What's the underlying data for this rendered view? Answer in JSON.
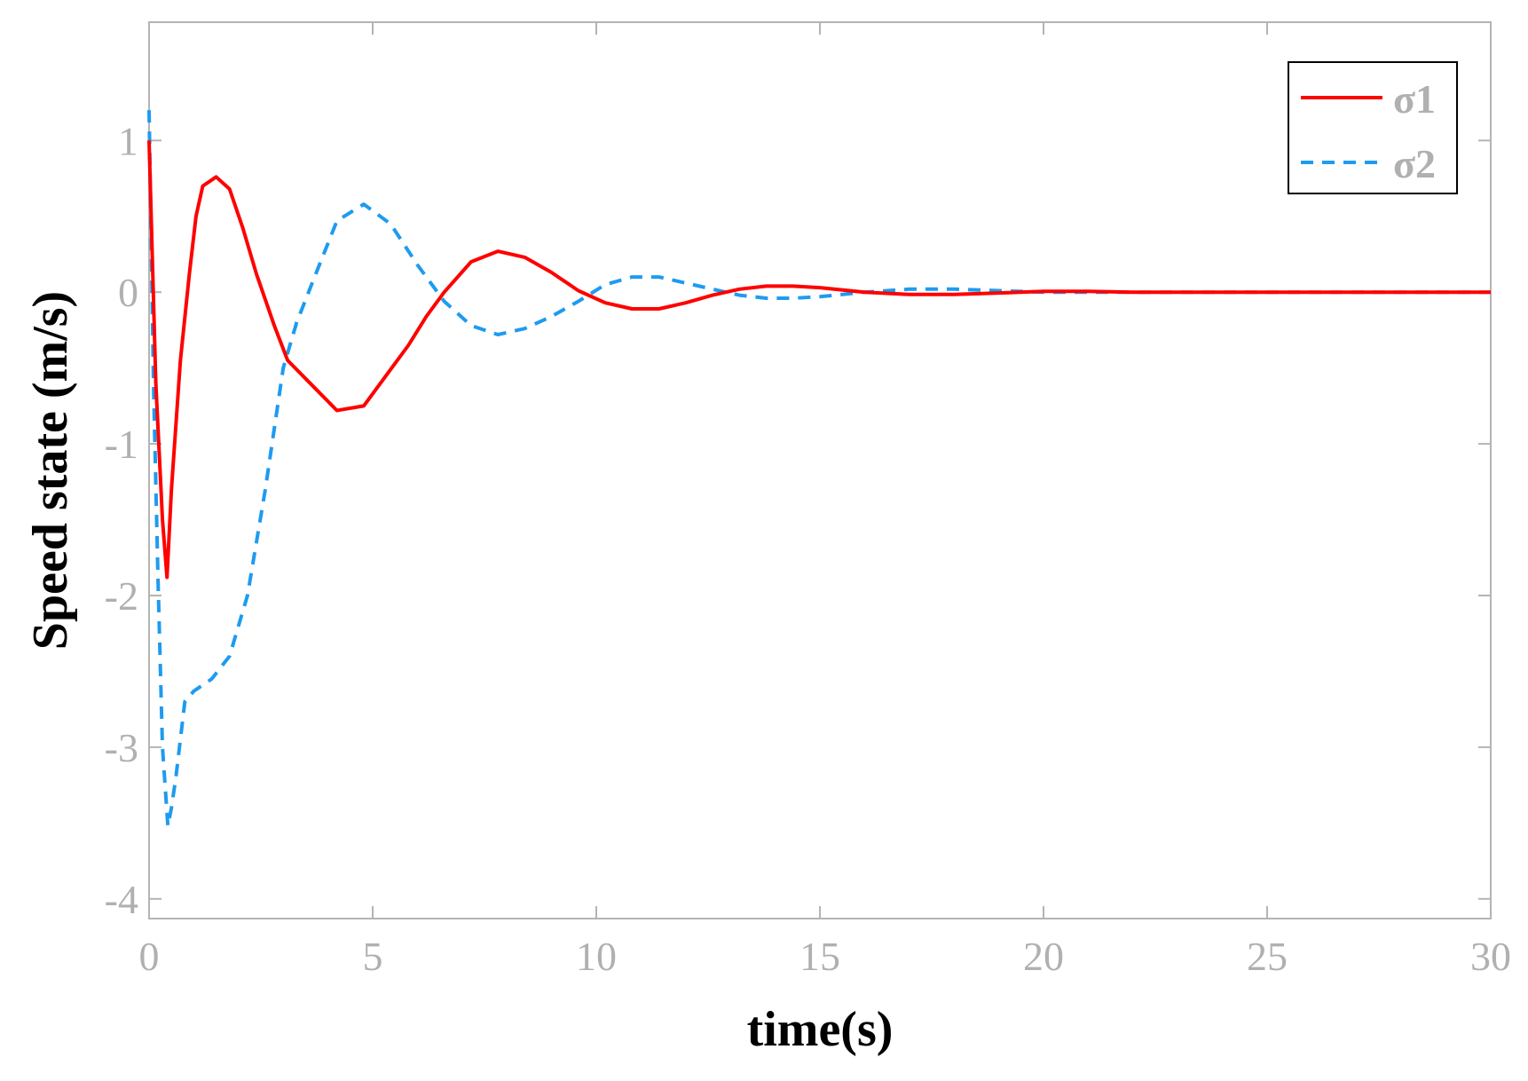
{
  "chart_data": {
    "type": "line",
    "xlabel": "time(s)",
    "ylabel": "Speed state (m/s)",
    "xlim": [
      0,
      30
    ],
    "ylim": [
      -4.13,
      1.78
    ],
    "x_ticks": [
      0,
      5,
      10,
      15,
      20,
      25,
      30
    ],
    "y_ticks": [
      -4,
      -3,
      -2,
      -1,
      0,
      1
    ],
    "grid": false,
    "legend_position": "top-right",
    "axis_color": "#b4b4b4",
    "tick_label_color": "#b0b0b0",
    "series": [
      {
        "name": "σ1",
        "color": "#ff0000",
        "dash": "solid",
        "x": [
          0,
          0.15,
          0.3,
          0.4,
          0.5,
          0.7,
          0.9,
          1.05,
          1.2,
          1.5,
          1.8,
          2.1,
          2.4,
          2.8,
          3.1,
          3.6,
          4.2,
          4.8,
          5.3,
          5.8,
          6.2,
          6.6,
          7.2,
          7.8,
          8.4,
          9.0,
          9.6,
          10.2,
          10.8,
          11.4,
          12.0,
          12.6,
          13.2,
          13.8,
          14.4,
          15.0,
          16.0,
          17.0,
          18.0,
          19.0,
          20.0,
          21.0,
          22.0,
          25.0,
          30.0
        ],
        "y": [
          1.0,
          -0.6,
          -1.5,
          -1.88,
          -1.3,
          -0.45,
          0.12,
          0.5,
          0.7,
          0.76,
          0.68,
          0.42,
          0.12,
          -0.22,
          -0.45,
          -0.6,
          -0.78,
          -0.75,
          -0.55,
          -0.35,
          -0.16,
          0.0,
          0.2,
          0.27,
          0.23,
          0.13,
          0.01,
          -0.07,
          -0.11,
          -0.11,
          -0.07,
          -0.02,
          0.02,
          0.04,
          0.04,
          0.03,
          0.0,
          -0.015,
          -0.015,
          -0.005,
          0.005,
          0.005,
          0.0,
          0.0,
          0.0
        ]
      },
      {
        "name": "σ2",
        "color": "#1e9bf0",
        "dash": "dashed",
        "x": [
          0,
          0.1,
          0.2,
          0.3,
          0.42,
          0.5,
          0.6,
          0.8,
          1.0,
          1.4,
          1.8,
          2.2,
          2.6,
          3.0,
          3.3,
          3.7,
          4.2,
          4.8,
          5.4,
          6.0,
          6.6,
          7.2,
          7.8,
          8.4,
          9.0,
          9.6,
          10.2,
          10.8,
          11.4,
          12.0,
          12.6,
          13.2,
          13.8,
          14.4,
          15.0,
          16.0,
          17.0,
          18.0,
          19.0,
          20.0,
          22.0,
          25.0,
          30.0
        ],
        "y": [
          1.2,
          -0.6,
          -1.9,
          -3.0,
          -3.52,
          -3.4,
          -3.2,
          -2.7,
          -2.63,
          -2.55,
          -2.4,
          -2.0,
          -1.3,
          -0.5,
          -0.2,
          0.1,
          0.47,
          0.58,
          0.45,
          0.18,
          -0.06,
          -0.22,
          -0.28,
          -0.24,
          -0.16,
          -0.06,
          0.05,
          0.1,
          0.1,
          0.06,
          0.02,
          -0.02,
          -0.04,
          -0.04,
          -0.03,
          0.0,
          0.02,
          0.02,
          0.01,
          0.0,
          0.0,
          0.0,
          0.0
        ]
      }
    ]
  }
}
